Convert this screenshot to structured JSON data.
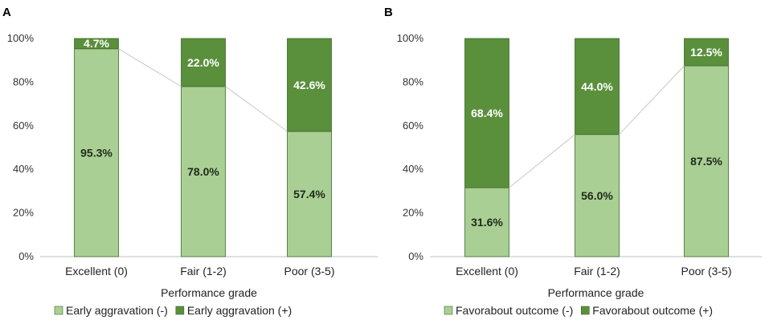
{
  "chart_data": [
    {
      "panel": "A",
      "type": "bar",
      "stacked": true,
      "percent": true,
      "categories": [
        "Excellent (0)",
        "Fair (1-2)",
        "Poor (3-5)"
      ],
      "series": [
        {
          "name": "Early aggravation (-)",
          "values": [
            95.3,
            78.0,
            57.4
          ],
          "labels": [
            "95.3%",
            "78.0%",
            "57.4%"
          ],
          "color": "#a9cf94",
          "label_color": "#1f2a1a"
        },
        {
          "name": "Early aggravation (+)",
          "values": [
            4.7,
            22.0,
            42.6
          ],
          "labels": [
            "4.7%",
            "22.0%",
            "42.6%"
          ],
          "color": "#5a8f3c",
          "label_color": "#ffffff"
        }
      ],
      "yticks": [
        "0%",
        "20%",
        "40%",
        "60%",
        "80%",
        "100%"
      ],
      "ylim": [
        0,
        100
      ],
      "xlabel": "Performance grade",
      "ylabel": "",
      "series_lines": true,
      "legend": "bottom",
      "grid": false
    },
    {
      "panel": "B",
      "type": "bar",
      "stacked": true,
      "percent": true,
      "categories": [
        "Excellent (0)",
        "Fair (1-2)",
        "Poor (3-5)"
      ],
      "series": [
        {
          "name": "Favorabout outcome (-)",
          "values": [
            31.6,
            56.0,
            87.5
          ],
          "labels": [
            "31.6%",
            "56.0%",
            "87.5%"
          ],
          "color": "#a9cf94",
          "label_color": "#1f2a1a"
        },
        {
          "name": "Favorabout outcome (+)",
          "values": [
            68.4,
            44.0,
            12.5
          ],
          "labels": [
            "68.4%",
            "44.0%",
            "12.5%"
          ],
          "color": "#5a8f3c",
          "label_color": "#ffffff"
        }
      ],
      "yticks": [
        "0%",
        "20%",
        "40%",
        "60%",
        "80%",
        "100%"
      ],
      "ylim": [
        0,
        100
      ],
      "xlabel": "Performance grade",
      "ylabel": "",
      "series_lines": true,
      "legend": "bottom",
      "grid": false
    }
  ]
}
